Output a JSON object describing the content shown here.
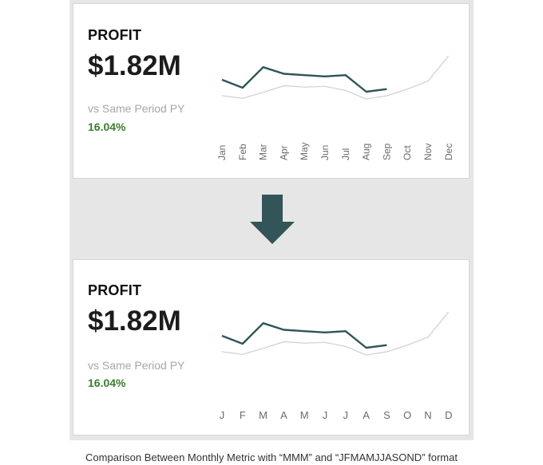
{
  "colors": {
    "current": "#2e5558",
    "prior": "#cfcfcf",
    "positive": "#3a7d2f",
    "arrow": "#335458"
  },
  "cards": [
    {
      "title": "PROFIT",
      "value": "$1.82M",
      "comparison_label": "vs Same Period PY",
      "change_pct": "16.04%",
      "month_labels": [
        "Jan",
        "Feb",
        "Mar",
        "Apr",
        "May",
        "Jun",
        "Jul",
        "Aug",
        "Sep",
        "Oct",
        "Nov",
        "Dec"
      ],
      "label_orientation": "vertical"
    },
    {
      "title": "PROFIT",
      "value": "$1.82M",
      "comparison_label": "vs Same Period PY",
      "change_pct": "16.04%",
      "month_labels": [
        "J",
        "F",
        "M",
        "A",
        "M",
        "J",
        "J",
        "A",
        "S",
        "O",
        "N",
        "D"
      ],
      "label_orientation": "horizontal"
    }
  ],
  "chart_data": [
    {
      "type": "line",
      "categories": [
        "Jan",
        "Feb",
        "Mar",
        "Apr",
        "May",
        "Jun",
        "Jul",
        "Aug",
        "Sep",
        "Oct",
        "Nov",
        "Dec"
      ],
      "series": [
        {
          "values": [
            62,
            50,
            81,
            71,
            69,
            67,
            69,
            44,
            48,
            null,
            null,
            null
          ]
        },
        {
          "values": [
            38,
            34,
            43,
            53,
            51,
            52,
            46,
            33,
            38,
            48,
            60,
            98
          ]
        }
      ],
      "ylim": [
        20,
        110
      ]
    },
    {
      "type": "line",
      "categories": [
        "J",
        "F",
        "M",
        "A",
        "M",
        "J",
        "J",
        "A",
        "S",
        "O",
        "N",
        "D"
      ],
      "series": [
        {
          "values": [
            62,
            50,
            81,
            71,
            69,
            67,
            69,
            44,
            48,
            null,
            null,
            null
          ]
        },
        {
          "values": [
            38,
            34,
            43,
            53,
            51,
            52,
            46,
            33,
            38,
            48,
            60,
            98
          ]
        }
      ],
      "ylim": [
        20,
        110
      ]
    }
  ],
  "caption": "Comparison Between Monthly Metric with “MMM” and “JFMAMJJASOND” format"
}
